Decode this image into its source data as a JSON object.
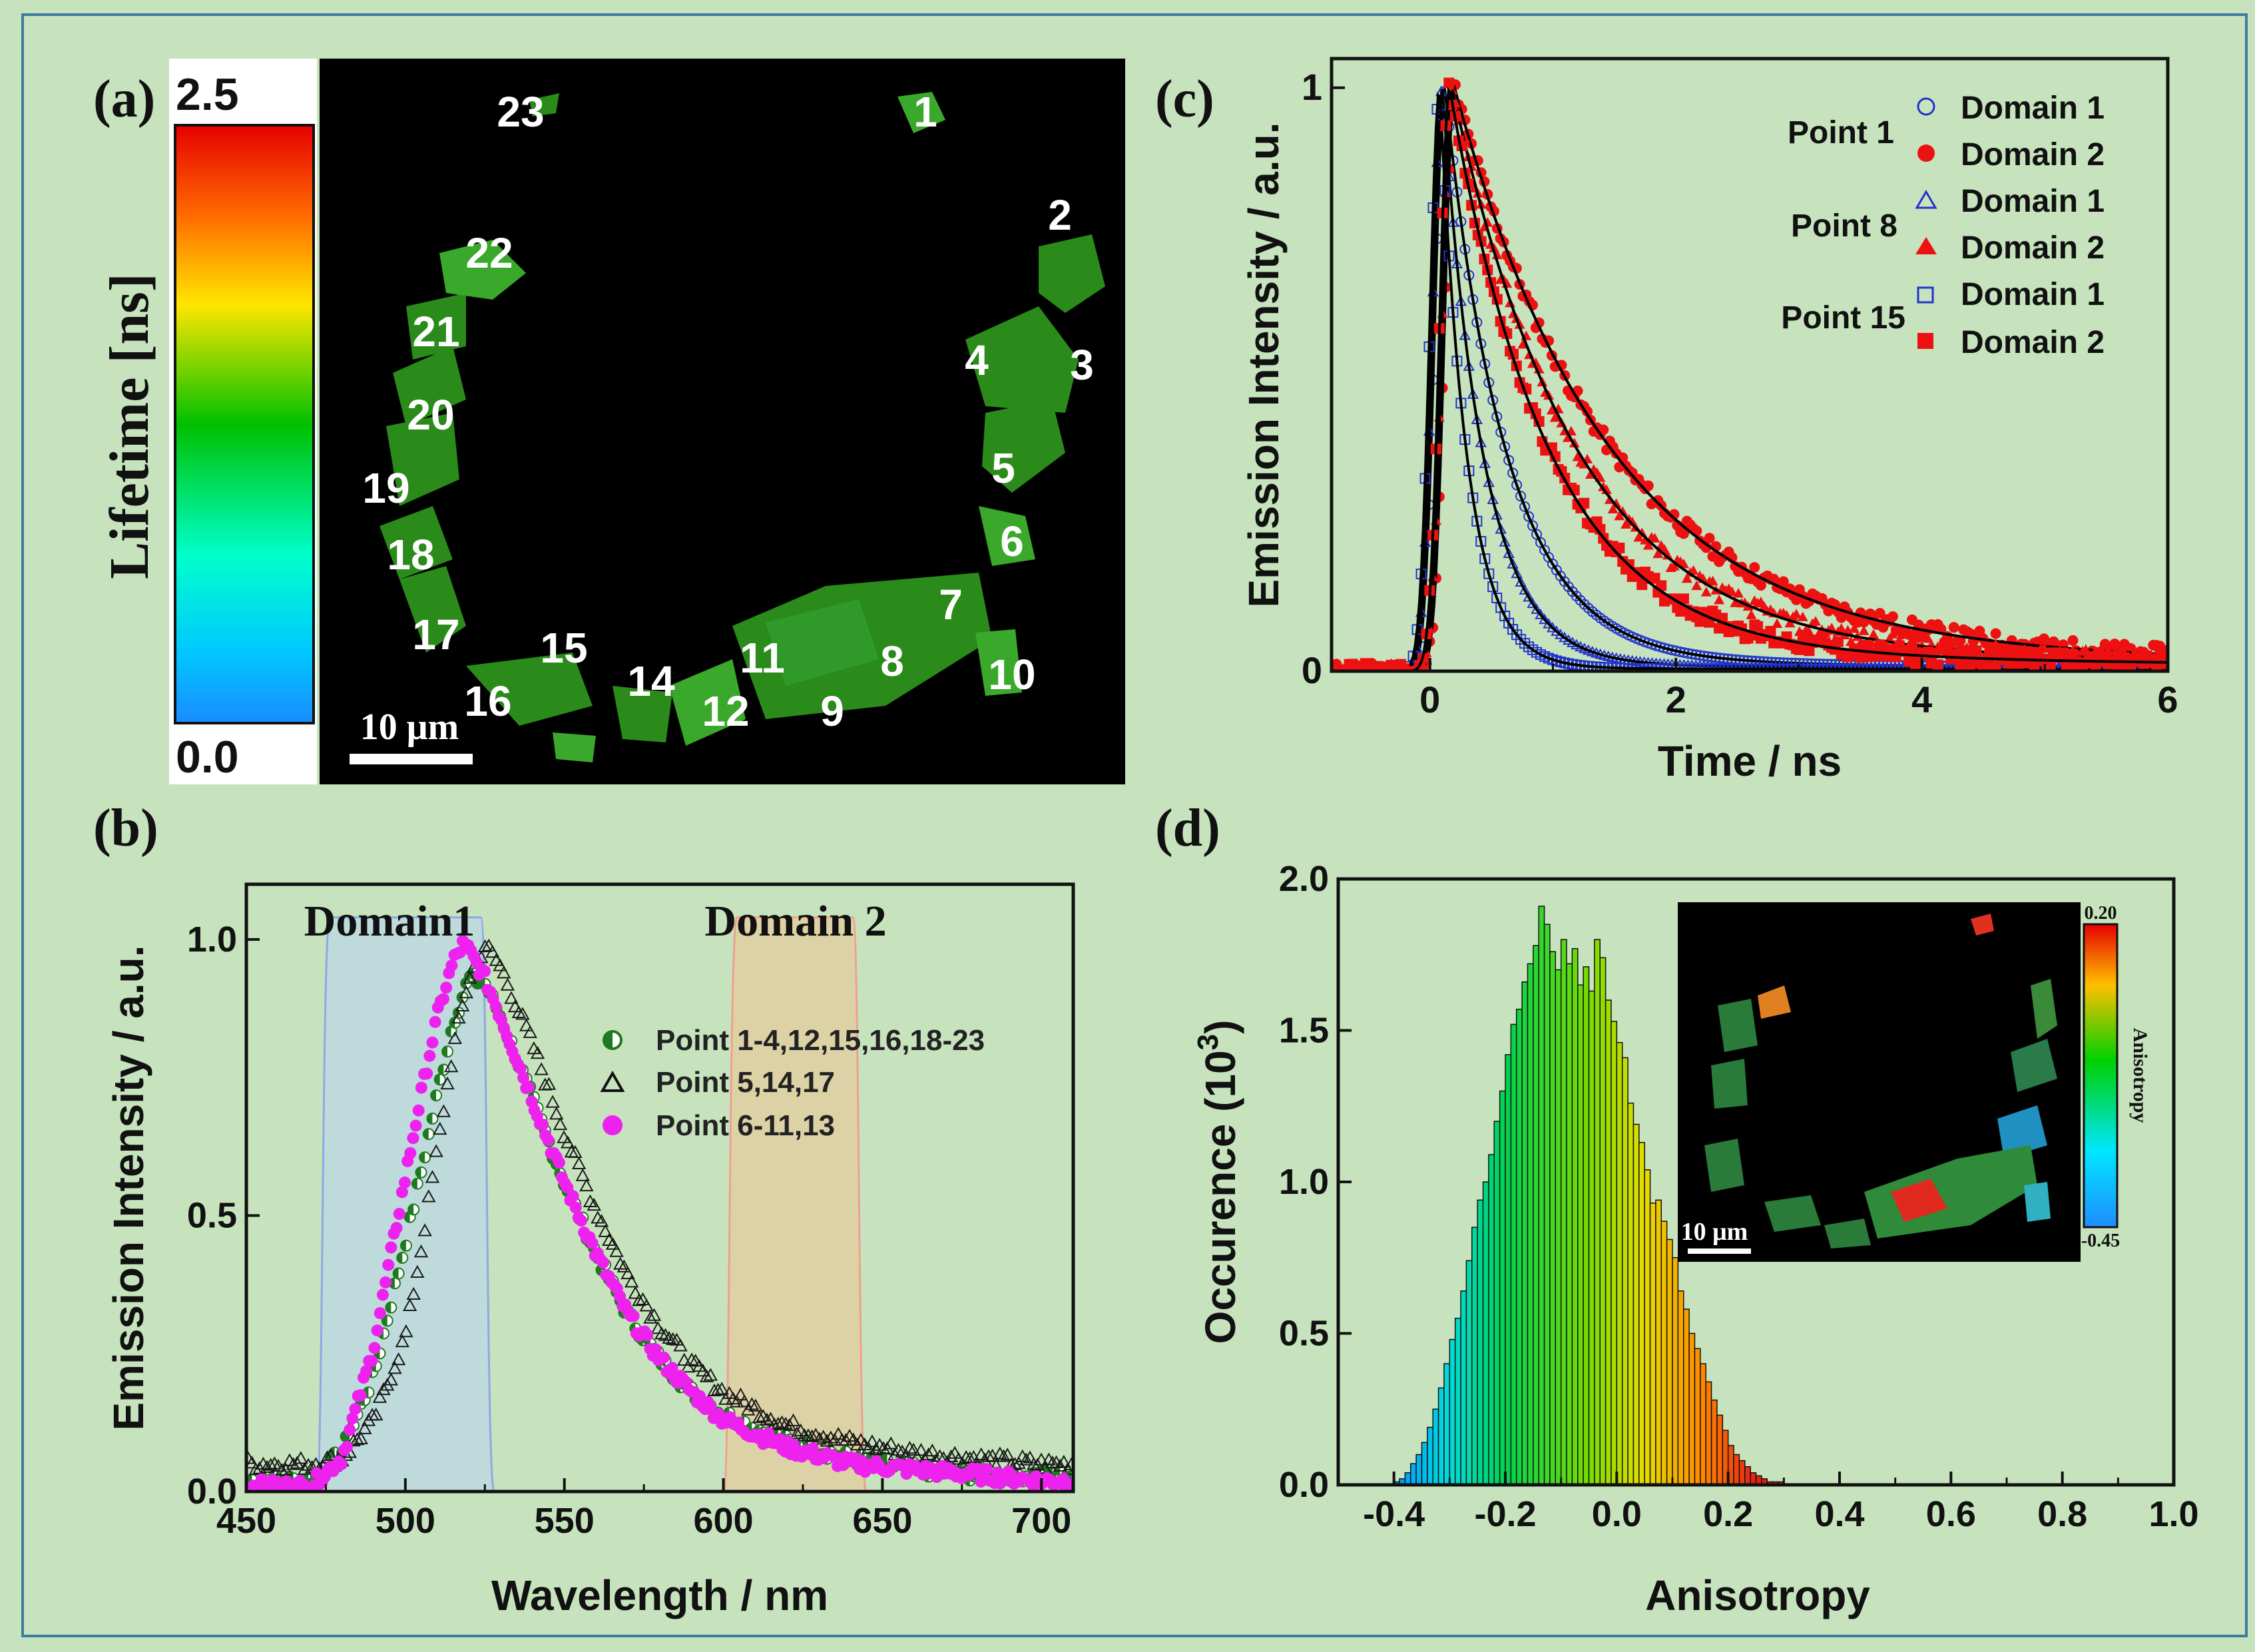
{
  "figure": {
    "background": "#c6e3bd",
    "border": "#3f7aa0"
  },
  "chart_data": [
    {
      "panel": "(a)",
      "type": "image",
      "colorbar": {
        "label": "Lifetime [ns]",
        "max_label": "2.5",
        "min_label": "0.0",
        "min": 0.0,
        "max": 2.5
      },
      "scale_bar": "10 μm",
      "points": [
        "1",
        "2",
        "3",
        "4",
        "5",
        "6",
        "7",
        "8",
        "9",
        "10",
        "11",
        "12",
        "14",
        "15",
        "16",
        "17",
        "18",
        "19",
        "20",
        "21",
        "22",
        "23"
      ]
    },
    {
      "panel": "(b)",
      "type": "line",
      "xlabel": "Wavelength / nm",
      "ylabel": "Emission Intensity / a.u.",
      "xlim": [
        450,
        710
      ],
      "ylim": [
        0,
        1.1
      ],
      "xticks": [
        450,
        500,
        550,
        600,
        650,
        700
      ],
      "xtick_labels": [
        "450",
        "500",
        "550",
        "600",
        "650",
        "700"
      ],
      "yticks": [
        0,
        0.5,
        1.0
      ],
      "ytick_labels": [
        "0.0",
        "0.5",
        "1.0"
      ],
      "filters": [
        {
          "name": "Domain1",
          "range": [
            475,
            525
          ],
          "level": 1.04,
          "color": "#bcd8e0",
          "edge": "#8fa8e6"
        },
        {
          "name": "Domain 2",
          "range": [
            603,
            642
          ],
          "level": 1.04,
          "color": "#dfcfa2",
          "edge": "#f0a090"
        }
      ],
      "series": [
        {
          "name": "Point 1-4,12,15,16,18-23",
          "marker": "half-circle",
          "color": "#1f7a1f",
          "peak": 522,
          "x": [
            450,
            470,
            480,
            490,
            500,
            505,
            510,
            515,
            520,
            525,
            530,
            540,
            550,
            560,
            570,
            580,
            590,
            600,
            620,
            640,
            660,
            680,
            700,
            710
          ],
          "y": [
            0.02,
            0.02,
            0.07,
            0.21,
            0.45,
            0.58,
            0.72,
            0.85,
            0.93,
            0.92,
            0.86,
            0.71,
            0.56,
            0.43,
            0.32,
            0.24,
            0.18,
            0.14,
            0.09,
            0.06,
            0.04,
            0.03,
            0.03,
            0.03
          ]
        },
        {
          "name": "Point 5,14,17",
          "marker": "triangle-open",
          "color": "#1a1a1a",
          "peak": 527,
          "x": [
            450,
            470,
            480,
            490,
            500,
            505,
            510,
            515,
            520,
            525,
            530,
            540,
            550,
            560,
            570,
            580,
            590,
            600,
            620,
            640,
            660,
            680,
            700,
            710
          ],
          "y": [
            0.05,
            0.05,
            0.06,
            0.13,
            0.28,
            0.44,
            0.62,
            0.8,
            0.93,
            0.99,
            0.95,
            0.81,
            0.65,
            0.51,
            0.39,
            0.3,
            0.23,
            0.18,
            0.12,
            0.09,
            0.07,
            0.06,
            0.05,
            0.05
          ]
        },
        {
          "name": "Point 6-11,13",
          "marker": "circle",
          "color": "#ee22ee",
          "peak": 518,
          "x": [
            450,
            470,
            480,
            490,
            500,
            505,
            510,
            515,
            518,
            520,
            525,
            530,
            540,
            550,
            560,
            570,
            580,
            590,
            600,
            620,
            640,
            660,
            680,
            700,
            710
          ],
          "y": [
            0.01,
            0.01,
            0.06,
            0.26,
            0.57,
            0.72,
            0.86,
            0.96,
            0.99,
            0.98,
            0.93,
            0.86,
            0.71,
            0.56,
            0.43,
            0.32,
            0.24,
            0.18,
            0.13,
            0.08,
            0.05,
            0.04,
            0.03,
            0.02,
            0.02
          ]
        }
      ],
      "annotations": [
        "Domain1",
        "Domain 2"
      ]
    },
    {
      "panel": "(c)",
      "type": "scatter",
      "xlabel": "Time / ns",
      "ylabel": "Emission Intensity / a.u.",
      "xlim": [
        -0.8,
        6
      ],
      "ylim": [
        0,
        1.05
      ],
      "xticks": [
        0,
        2,
        4,
        6
      ],
      "xtick_labels": [
        "0",
        "2",
        "4",
        "6"
      ],
      "yticks": [
        0,
        1
      ],
      "ytick_labels": [
        "0",
        "1"
      ],
      "legend_groups": [
        "Point 1",
        "Point 8",
        "Point 15"
      ],
      "series": [
        {
          "name": "Domain 1",
          "group": "Point 1",
          "marker": "circle-open",
          "color": "#2233cc",
          "tau": 0.5,
          "peak_t": 0.12,
          "tail": 0.015
        },
        {
          "name": "Domain 2",
          "group": "Point 1",
          "marker": "circle",
          "color": "#ee1111",
          "tau": 1.25,
          "peak_t": 0.2,
          "tail": 0.04
        },
        {
          "name": "Domain 1",
          "group": "Point 8",
          "marker": "triangle-open",
          "color": "#2233cc",
          "tau": 0.33,
          "peak_t": 0.1,
          "tail": 0.01
        },
        {
          "name": "Domain 2",
          "group": "Point 8",
          "marker": "triangle",
          "color": "#ee1111",
          "tau": 1.0,
          "peak_t": 0.18,
          "tail": 0.035
        },
        {
          "name": "Domain 1",
          "group": "Point 15",
          "marker": "square-open",
          "color": "#2233cc",
          "tau": 0.22,
          "peak_t": 0.08,
          "tail": 0.005
        },
        {
          "name": "Domain 2",
          "group": "Point 15",
          "marker": "square",
          "color": "#ee1111",
          "tau": 0.8,
          "peak_t": 0.16,
          "tail": 0.03
        }
      ],
      "fit_color": "#000000"
    },
    {
      "panel": "(d)",
      "type": "bar",
      "xlabel": "Anisotropy",
      "ylabel": "Occurence (10",
      "ylabel_sup": "3",
      "ylabel_end": ")",
      "xlim": [
        -0.5,
        1.0
      ],
      "ylim": [
        0,
        2.0
      ],
      "xticks": [
        -0.4,
        -0.2,
        0.0,
        0.2,
        0.4,
        0.6,
        0.8,
        1.0
      ],
      "xtick_labels": [
        "-0.4",
        "-0.2",
        "0.0",
        "0.2",
        "0.4",
        "0.6",
        "0.8",
        "1.0"
      ],
      "yticks": [
        0,
        0.5,
        1.0,
        1.5,
        2.0
      ],
      "ytick_labels": [
        "0.0",
        "0.5",
        "1.0",
        "1.5",
        "2.0"
      ],
      "bin_width": 0.01,
      "bins_start": -0.4,
      "values": [
        0.01,
        0.02,
        0.04,
        0.07,
        0.1,
        0.14,
        0.19,
        0.25,
        0.32,
        0.4,
        0.48,
        0.55,
        0.64,
        0.74,
        0.85,
        0.94,
        1.0,
        1.09,
        1.2,
        1.3,
        1.42,
        1.52,
        1.57,
        1.66,
        1.72,
        1.78,
        1.91,
        1.85,
        1.76,
        1.7,
        1.8,
        1.72,
        1.77,
        1.65,
        1.71,
        1.63,
        1.8,
        1.74,
        1.6,
        1.53,
        1.46,
        1.41,
        1.26,
        1.19,
        1.13,
        1.04,
        0.93,
        0.94,
        0.87,
        0.81,
        0.75,
        0.64,
        0.58,
        0.5,
        0.45,
        0.4,
        0.34,
        0.28,
        0.23,
        0.18,
        0.13,
        0.1,
        0.08,
        0.06,
        0.04,
        0.03,
        0.02,
        0.01,
        0.01,
        0.01
      ],
      "inset": {
        "colorbar_label": "Anisotropy",
        "max_label": "0.20",
        "min_label": "-0.45",
        "scale_bar": "10 μm"
      }
    }
  ]
}
